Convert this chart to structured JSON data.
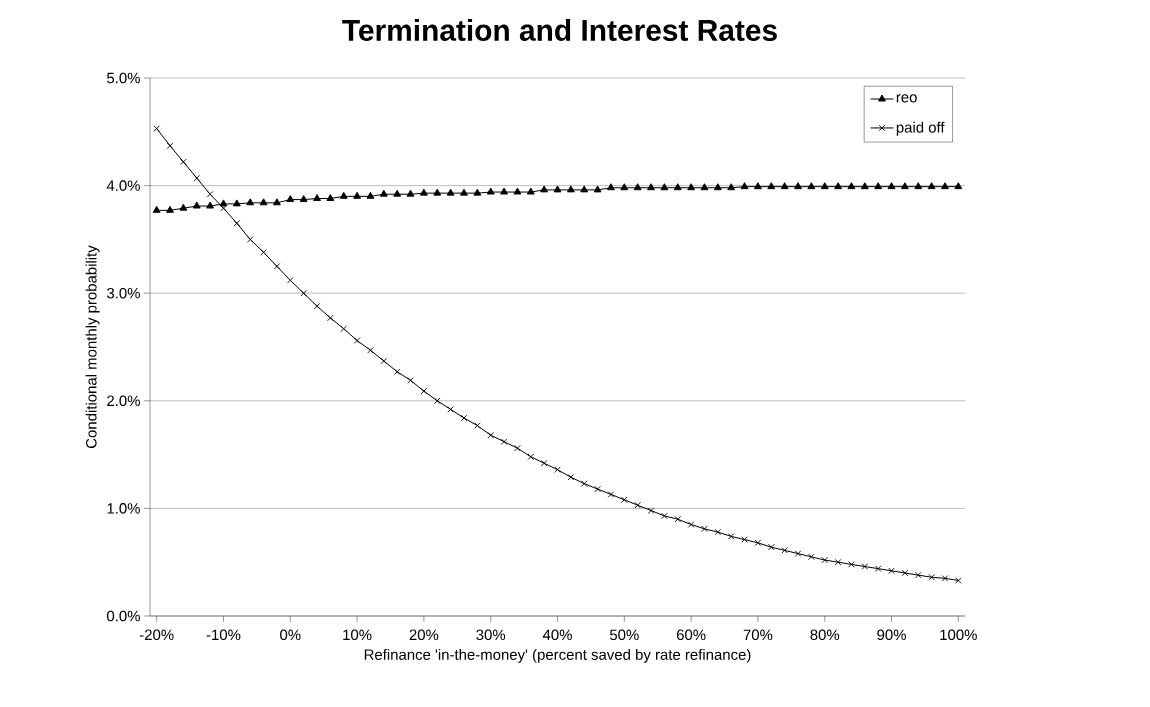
{
  "chart_data": {
    "type": "line",
    "title": "Termination and Interest Rates",
    "xlabel": "Refinance 'in-the-money' (percent saved by rate refinance)",
    "ylabel": "Conditional monthly probability",
    "x": [
      -20,
      -18,
      -16,
      -14,
      -12,
      -10,
      -8,
      -6,
      -4,
      -2,
      0,
      2,
      4,
      6,
      8,
      10,
      12,
      14,
      16,
      18,
      20,
      22,
      24,
      26,
      28,
      30,
      32,
      34,
      36,
      38,
      40,
      42,
      44,
      46,
      48,
      50,
      52,
      54,
      56,
      58,
      60,
      62,
      64,
      66,
      68,
      70,
      72,
      74,
      76,
      78,
      80,
      82,
      84,
      86,
      88,
      90,
      92,
      94,
      96,
      98,
      100
    ],
    "series": [
      {
        "name": "reo",
        "color": "#000000",
        "marker": "triangle",
        "values": [
          3.77,
          3.77,
          3.79,
          3.81,
          3.81,
          3.83,
          3.83,
          3.84,
          3.84,
          3.84,
          3.87,
          3.87,
          3.88,
          3.88,
          3.9,
          3.9,
          3.9,
          3.92,
          3.92,
          3.92,
          3.93,
          3.93,
          3.93,
          3.93,
          3.93,
          3.94,
          3.94,
          3.94,
          3.94,
          3.96,
          3.96,
          3.96,
          3.96,
          3.96,
          3.98,
          3.98,
          3.98,
          3.98,
          3.98,
          3.98,
          3.98,
          3.98,
          3.98,
          3.98,
          3.99,
          3.99,
          3.99,
          3.99,
          3.99,
          3.99,
          3.99,
          3.99,
          3.99,
          3.99,
          3.99,
          3.99,
          3.99,
          3.99,
          3.99,
          3.99,
          3.99
        ]
      },
      {
        "name": "paid off",
        "color": "#000000",
        "marker": "cross",
        "values": [
          4.53,
          4.37,
          4.22,
          4.07,
          3.92,
          3.79,
          3.65,
          3.5,
          3.38,
          3.25,
          3.12,
          3.0,
          2.88,
          2.77,
          2.67,
          2.56,
          2.47,
          2.37,
          2.27,
          2.19,
          2.09,
          2.0,
          1.92,
          1.84,
          1.77,
          1.68,
          1.62,
          1.56,
          1.48,
          1.42,
          1.36,
          1.29,
          1.23,
          1.18,
          1.13,
          1.08,
          1.03,
          0.98,
          0.93,
          0.9,
          0.85,
          0.81,
          0.78,
          0.74,
          0.71,
          0.68,
          0.64,
          0.61,
          0.58,
          0.55,
          0.52,
          0.5,
          0.48,
          0.46,
          0.44,
          0.42,
          0.4,
          0.38,
          0.36,
          0.35,
          0.33
        ]
      }
    ],
    "xlim": [
      -21,
      101
    ],
    "ylim": [
      0,
      5
    ],
    "xticks": [
      {
        "value": -20,
        "label": "-20%"
      },
      {
        "value": -10,
        "label": "-10%"
      },
      {
        "value": 0,
        "label": "0%"
      },
      {
        "value": 10,
        "label": "10%"
      },
      {
        "value": 20,
        "label": "20%"
      },
      {
        "value": 30,
        "label": "30%"
      },
      {
        "value": 40,
        "label": "40%"
      },
      {
        "value": 50,
        "label": "50%"
      },
      {
        "value": 60,
        "label": "60%"
      },
      {
        "value": 70,
        "label": "70%"
      },
      {
        "value": 80,
        "label": "80%"
      },
      {
        "value": 90,
        "label": "90%"
      },
      {
        "value": 100,
        "label": "100%"
      }
    ],
    "yticks": [
      {
        "value": 0,
        "label": "0.0%"
      },
      {
        "value": 1,
        "label": "1.0%"
      },
      {
        "value": 2,
        "label": "2.0%"
      },
      {
        "value": 3,
        "label": "3.0%"
      },
      {
        "value": 4,
        "label": "4.0%"
      },
      {
        "value": 5,
        "label": "5.0%"
      }
    ],
    "grid": "y",
    "legend": "top right",
    "line_style": "solid"
  }
}
